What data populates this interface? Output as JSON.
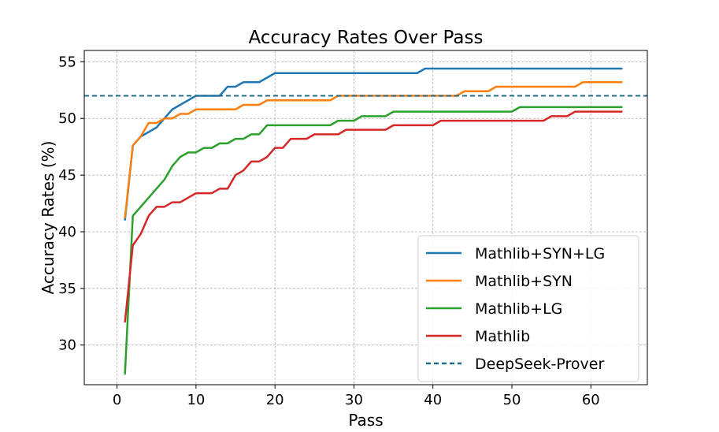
{
  "chart_data": {
    "type": "line",
    "title": "Accuracy Rates Over Pass",
    "xlabel": "Pass",
    "ylabel": "Accuracy Rates (%)",
    "xlim": [
      -4.15,
      67.15
    ],
    "ylim": [
      26.5,
      56.0
    ],
    "xticks": [
      0,
      10,
      20,
      30,
      40,
      50,
      60
    ],
    "yticks": [
      30,
      35,
      40,
      45,
      50,
      55
    ],
    "grid": true,
    "legend_position": "lower right",
    "series": [
      {
        "name": "Mathlib+SYN+LG",
        "color": "#1f77b4",
        "style": "solid",
        "points": [
          [
            1,
            41.0
          ],
          [
            2,
            47.6
          ],
          [
            3,
            48.4
          ],
          [
            4,
            48.8
          ],
          [
            5,
            49.2
          ],
          [
            6,
            50.0
          ],
          [
            7,
            50.8
          ],
          [
            8,
            51.2
          ],
          [
            9,
            51.6
          ],
          [
            10,
            52.0
          ],
          [
            11,
            52.0
          ],
          [
            12,
            52.0
          ],
          [
            13,
            52.0
          ],
          [
            14,
            52.8
          ],
          [
            15,
            52.8
          ],
          [
            16,
            53.2
          ],
          [
            17,
            53.2
          ],
          [
            18,
            53.2
          ],
          [
            19,
            53.6
          ],
          [
            20,
            54.0
          ],
          [
            38,
            54.0
          ],
          [
            39,
            54.4
          ],
          [
            64,
            54.4
          ]
        ]
      },
      {
        "name": "Mathlib+SYN",
        "color": "#ff7f0e",
        "style": "solid",
        "points": [
          [
            1,
            41.2
          ],
          [
            2,
            47.6
          ],
          [
            3,
            48.4
          ],
          [
            4,
            49.6
          ],
          [
            5,
            49.6
          ],
          [
            6,
            50.0
          ],
          [
            7,
            50.0
          ],
          [
            8,
            50.4
          ],
          [
            9,
            50.4
          ],
          [
            10,
            50.8
          ],
          [
            15,
            50.8
          ],
          [
            16,
            51.2
          ],
          [
            18,
            51.2
          ],
          [
            19,
            51.6
          ],
          [
            27,
            51.6
          ],
          [
            28,
            52.0
          ],
          [
            43,
            52.0
          ],
          [
            44,
            52.4
          ],
          [
            47,
            52.4
          ],
          [
            48,
            52.8
          ],
          [
            58,
            52.8
          ],
          [
            59,
            53.2
          ],
          [
            64,
            53.2
          ]
        ]
      },
      {
        "name": "Mathlib+LG",
        "color": "#2ca02c",
        "style": "solid",
        "points": [
          [
            1,
            27.4
          ],
          [
            2,
            41.4
          ],
          [
            3,
            42.2
          ],
          [
            4,
            43.0
          ],
          [
            5,
            43.8
          ],
          [
            6,
            44.6
          ],
          [
            7,
            45.8
          ],
          [
            8,
            46.6
          ],
          [
            9,
            47.0
          ],
          [
            10,
            47.0
          ],
          [
            11,
            47.4
          ],
          [
            12,
            47.4
          ],
          [
            13,
            47.8
          ],
          [
            14,
            47.8
          ],
          [
            15,
            48.2
          ],
          [
            16,
            48.2
          ],
          [
            17,
            48.6
          ],
          [
            18,
            48.6
          ],
          [
            19,
            49.4
          ],
          [
            27,
            49.4
          ],
          [
            28,
            49.8
          ],
          [
            30,
            49.8
          ],
          [
            31,
            50.2
          ],
          [
            34,
            50.2
          ],
          [
            35,
            50.6
          ],
          [
            50,
            50.6
          ],
          [
            51,
            51.0
          ],
          [
            64,
            51.0
          ]
        ]
      },
      {
        "name": "Mathlib",
        "color": "#d62728",
        "style": "solid",
        "points": [
          [
            1,
            32.0
          ],
          [
            2,
            38.8
          ],
          [
            3,
            39.8
          ],
          [
            4,
            41.4
          ],
          [
            5,
            42.2
          ],
          [
            6,
            42.2
          ],
          [
            7,
            42.6
          ],
          [
            8,
            42.6
          ],
          [
            9,
            43.0
          ],
          [
            10,
            43.4
          ],
          [
            12,
            43.4
          ],
          [
            13,
            43.8
          ],
          [
            14,
            43.8
          ],
          [
            15,
            45.0
          ],
          [
            16,
            45.4
          ],
          [
            17,
            46.2
          ],
          [
            18,
            46.2
          ],
          [
            19,
            46.6
          ],
          [
            20,
            47.4
          ],
          [
            21,
            47.4
          ],
          [
            22,
            48.2
          ],
          [
            24,
            48.2
          ],
          [
            25,
            48.6
          ],
          [
            28,
            48.6
          ],
          [
            29,
            49.0
          ],
          [
            34,
            49.0
          ],
          [
            35,
            49.4
          ],
          [
            40,
            49.4
          ],
          [
            41,
            49.8
          ],
          [
            54,
            49.8
          ],
          [
            55,
            50.2
          ],
          [
            57,
            50.2
          ],
          [
            58,
            50.6
          ],
          [
            64,
            50.6
          ]
        ]
      },
      {
        "name": "DeepSeek-Prover",
        "color": "#1f6e8c",
        "style": "dashed",
        "hline": 52.0
      }
    ]
  }
}
